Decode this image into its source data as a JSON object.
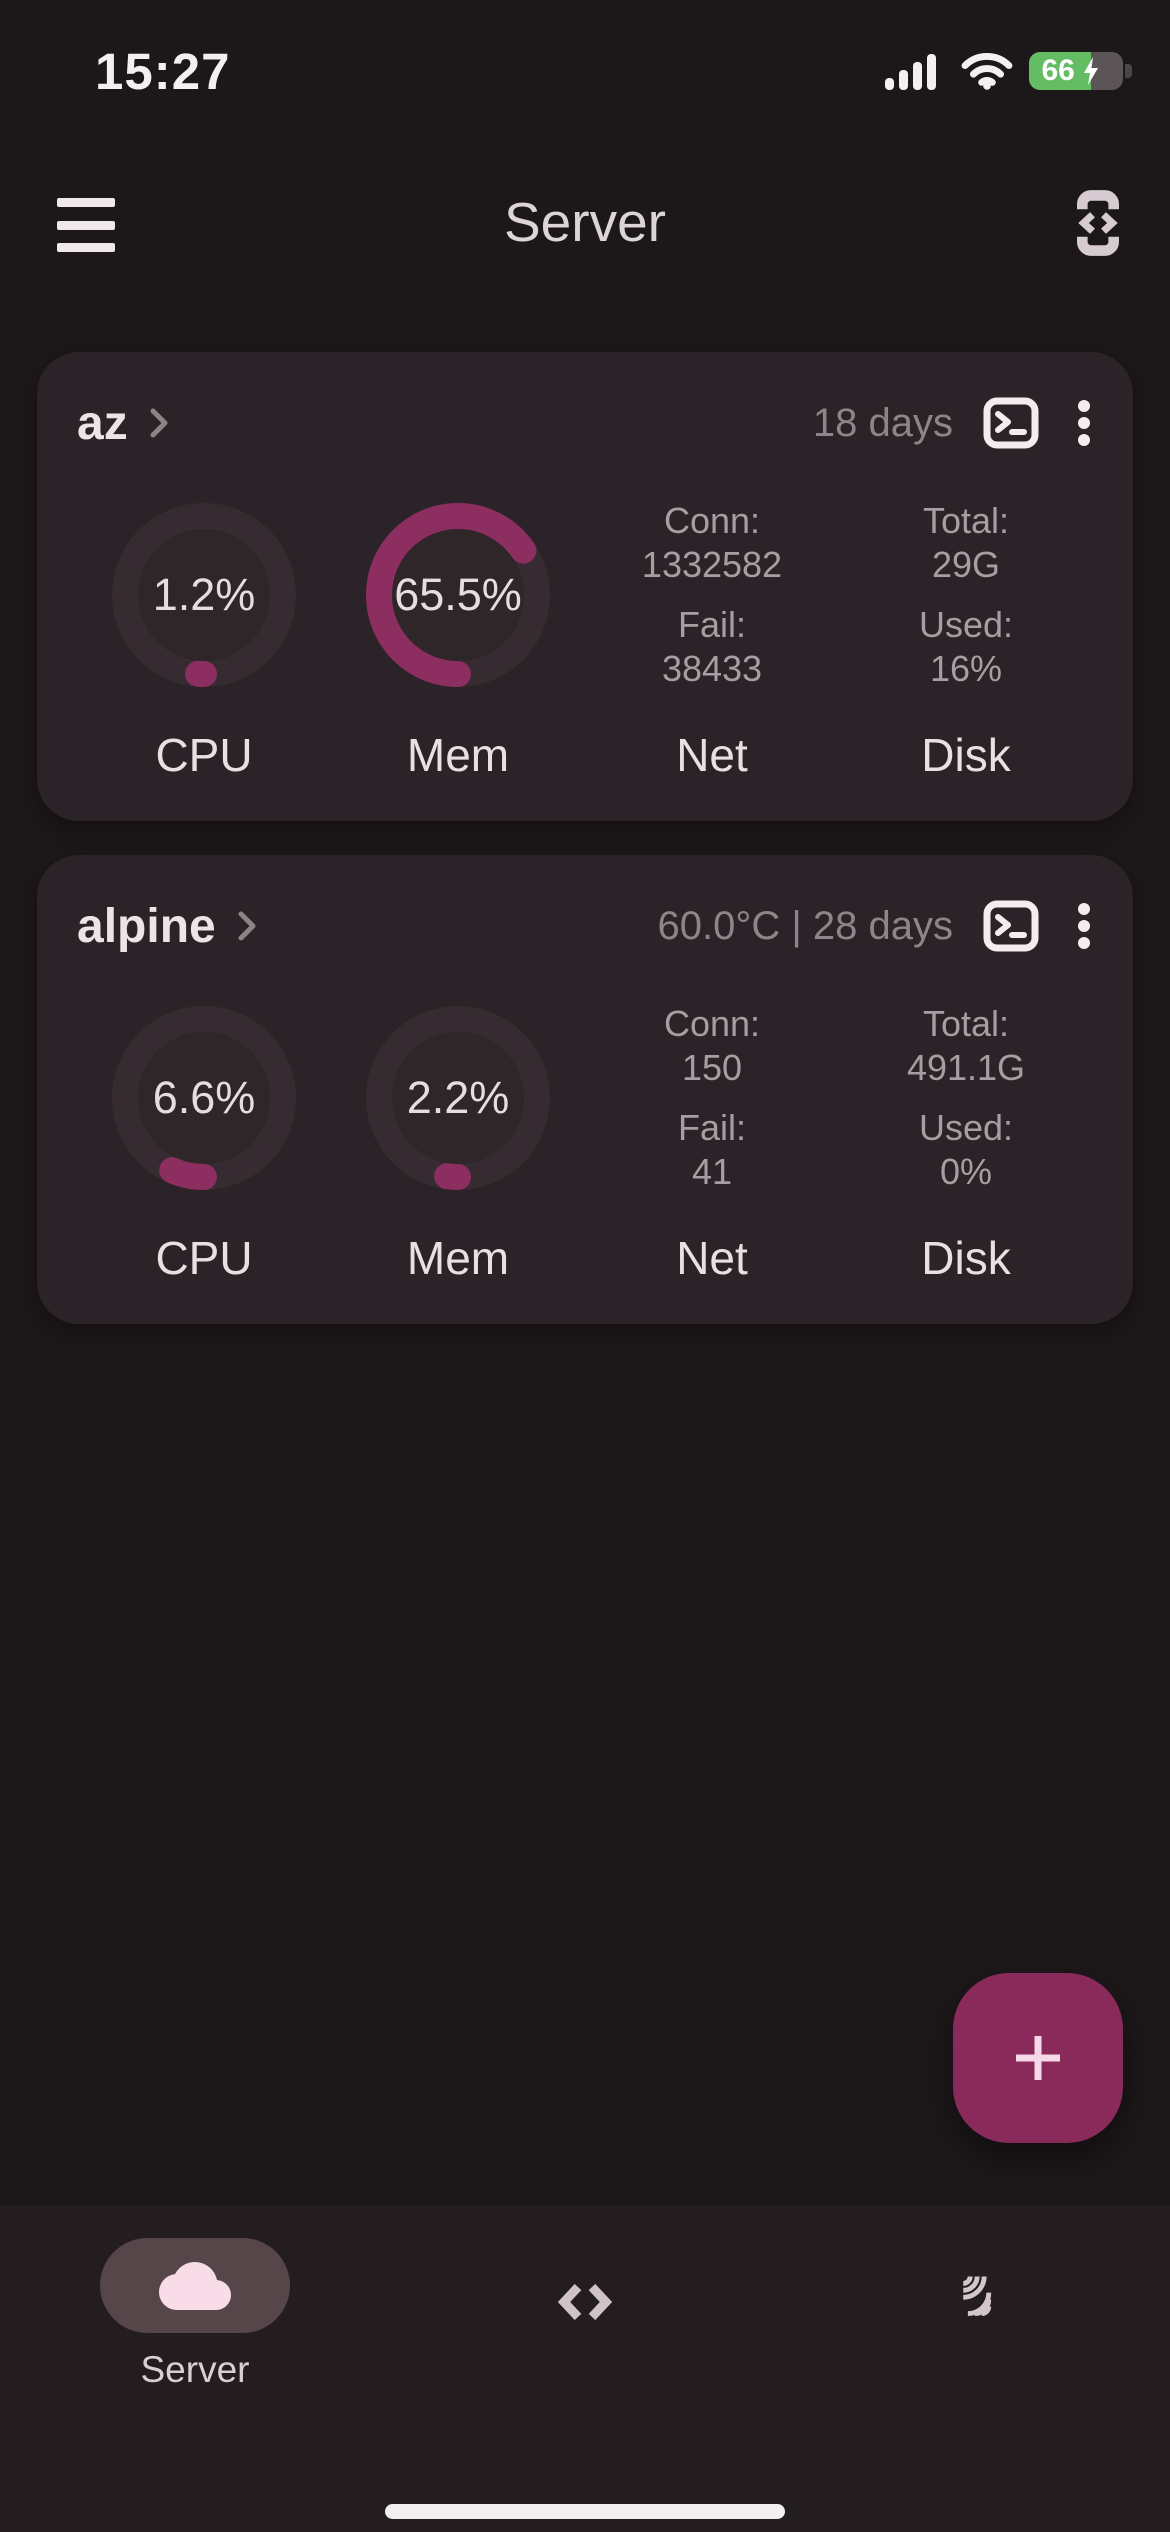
{
  "theme": {
    "accent": "#8c2e60",
    "accent_fab": "#8a2a5b",
    "battery_green": "#64bd63",
    "card_bg": "#2b2327",
    "page_bg": "#1c1719"
  },
  "status_bar": {
    "time": "15:27",
    "battery_level": "66",
    "charging": true
  },
  "header": {
    "title": "Server"
  },
  "servers": [
    {
      "name": "az",
      "uptime": "18 days",
      "gauges": [
        {
          "label": "CPU",
          "value": "1.2%",
          "percent": 1.2
        },
        {
          "label": "Mem",
          "value": "65.5%",
          "percent": 65.5
        }
      ],
      "stats": [
        {
          "label": "Net",
          "rows": [
            {
              "k": "Conn:",
              "v": "1332582"
            },
            {
              "k": "Fail:",
              "v": "38433"
            }
          ]
        },
        {
          "label": "Disk",
          "rows": [
            {
              "k": "Total:",
              "v": "29G"
            },
            {
              "k": "Used:",
              "v": "16%"
            }
          ]
        }
      ]
    },
    {
      "name": "alpine",
      "uptime": "60.0°C | 28 days",
      "gauges": [
        {
          "label": "CPU",
          "value": "6.6%",
          "percent": 6.6
        },
        {
          "label": "Mem",
          "value": "2.2%",
          "percent": 2.2
        }
      ],
      "stats": [
        {
          "label": "Net",
          "rows": [
            {
              "k": "Conn:",
              "v": "150"
            },
            {
              "k": "Fail:",
              "v": "41"
            }
          ]
        },
        {
          "label": "Disk",
          "rows": [
            {
              "k": "Total:",
              "v": "491.1G"
            },
            {
              "k": "Used:",
              "v": "0%"
            }
          ]
        }
      ]
    }
  ],
  "fab": {
    "icon": "plus-icon"
  },
  "bottom_nav": {
    "items": [
      {
        "label": "Server",
        "icon": "cloud-icon",
        "active": true
      },
      {
        "label": "",
        "icon": "code-icon",
        "active": false
      },
      {
        "label": "",
        "icon": "ping-icon",
        "active": false
      }
    ]
  }
}
